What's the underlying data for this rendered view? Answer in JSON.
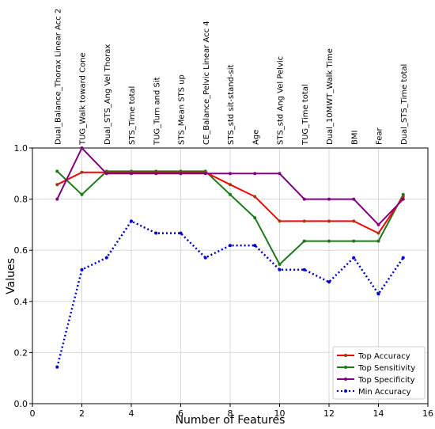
{
  "chart_data": {
    "type": "line",
    "xlabel": "Number of Features",
    "ylabel": "Values",
    "xlim": [
      0,
      16
    ],
    "ylim": [
      0.0,
      1.0
    ],
    "xticks": [
      0,
      2,
      4,
      6,
      8,
      10,
      12,
      14,
      16
    ],
    "yticks": [
      0.0,
      0.2,
      0.4,
      0.6,
      0.8,
      1.0
    ],
    "grid": true,
    "legend_position": "bottom-right",
    "x": [
      1,
      2,
      3,
      4,
      5,
      6,
      7,
      8,
      9,
      10,
      11,
      12,
      13,
      14,
      15
    ],
    "top_labels": [
      "Dual_Balance_Thorax Linear Acc 2",
      "TUG_Walk toward Cone",
      "Dual_STS_Ang Vel Thorax",
      "STS_Time total",
      "TUG_Turn and Sit",
      "STS_Mean STS up",
      "CE_Balance_Pelvic Linear Acc 4",
      "STS_std sit-stand-sit",
      "Age",
      "STS_std Ang Vel Pelvic",
      "TUG_Time total",
      "Dual_10MWT_Walk Time",
      "BMI",
      "Fear",
      "Dual_STS_Time total"
    ],
    "series": [
      {
        "name": "Top Accuracy",
        "color": "#8b4513",
        "line_color": "#ff0000",
        "style": "solid",
        "values": [
          0.857,
          0.905,
          0.905,
          0.905,
          0.905,
          0.905,
          0.905,
          0.857,
          0.81,
          0.714,
          0.714,
          0.714,
          0.714,
          0.667,
          0.81
        ]
      },
      {
        "name": "Top Sensitivity",
        "color": "#1a7a1a",
        "line_color": "#1a7a1a",
        "style": "solid",
        "values": [
          0.909,
          0.818,
          0.909,
          0.909,
          0.909,
          0.909,
          0.909,
          0.818,
          0.727,
          0.545,
          0.636,
          0.636,
          0.636,
          0.636,
          0.818
        ]
      },
      {
        "name": "Top Specificity",
        "color": "#800080",
        "line_color": "#800080",
        "style": "solid",
        "values": [
          0.8,
          1.0,
          0.9,
          0.9,
          0.9,
          0.9,
          0.9,
          0.9,
          0.9,
          0.9,
          0.8,
          0.8,
          0.8,
          0.7,
          0.8
        ]
      },
      {
        "name": "Min Accuracy",
        "color": "#0000cc",
        "line_color": "#0000cc",
        "style": "dotted",
        "values": [
          0.143,
          0.524,
          0.571,
          0.714,
          0.667,
          0.667,
          0.571,
          0.619,
          0.619,
          0.524,
          0.524,
          0.476,
          0.571,
          0.429,
          0.571
        ]
      }
    ]
  }
}
